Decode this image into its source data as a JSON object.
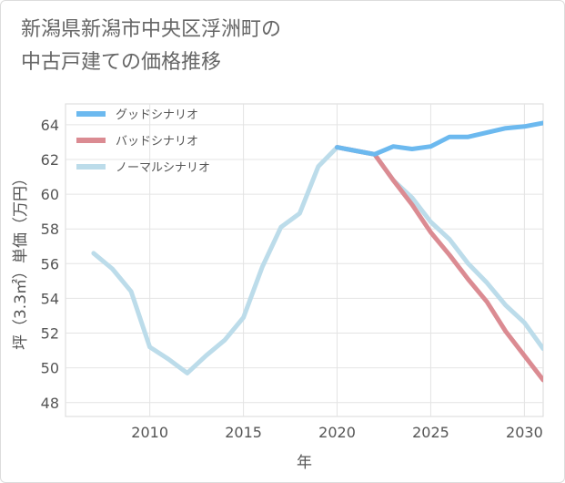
{
  "title_lines": [
    "新潟県新潟市中央区浮洲町の",
    "中古戸建ての価格推移"
  ],
  "chart_data": {
    "type": "line",
    "title": "新潟県新潟市中央区浮洲町の中古戸建ての価格推移",
    "xlabel": "年",
    "ylabel": "坪（3.3㎡）単価（万円）",
    "xlim": [
      2005.5,
      2031
    ],
    "ylim": [
      47.2,
      65.2
    ],
    "x_ticks": [
      2010,
      2015,
      2020,
      2025,
      2030
    ],
    "y_ticks": [
      48,
      50,
      52,
      54,
      56,
      58,
      60,
      62,
      64
    ],
    "legend_position": "top-left",
    "series": [
      {
        "name": "グッドシナリオ",
        "color": "#6cb9ef",
        "points": [
          [
            2020,
            62.7
          ],
          [
            2021,
            62.5
          ],
          [
            2022,
            62.3
          ],
          [
            2023,
            62.75
          ],
          [
            2024,
            62.6
          ],
          [
            2025,
            62.75
          ],
          [
            2026,
            63.3
          ],
          [
            2027,
            63.3
          ],
          [
            2028,
            63.55
          ],
          [
            2029,
            63.8
          ],
          [
            2030,
            63.9
          ],
          [
            2031,
            64.1
          ]
        ]
      },
      {
        "name": "バッドシナリオ",
        "color": "#db8b92",
        "points": [
          [
            2020,
            62.7
          ],
          [
            2021,
            62.5
          ],
          [
            2022,
            62.3
          ],
          [
            2023,
            60.8
          ],
          [
            2024,
            59.4
          ],
          [
            2025,
            57.8
          ],
          [
            2026,
            56.5
          ],
          [
            2027,
            55.1
          ],
          [
            2028,
            53.8
          ],
          [
            2029,
            52.1
          ],
          [
            2030,
            50.7
          ],
          [
            2031,
            49.3
          ]
        ]
      },
      {
        "name": "ノーマルシナリオ",
        "color": "#bcdcea",
        "points": [
          [
            2007,
            56.6
          ],
          [
            2008,
            55.7
          ],
          [
            2009,
            54.4
          ],
          [
            2010,
            51.2
          ],
          [
            2011,
            50.5
          ],
          [
            2012,
            49.7
          ],
          [
            2013,
            50.7
          ],
          [
            2014,
            51.6
          ],
          [
            2015,
            52.9
          ],
          [
            2016,
            55.8
          ],
          [
            2017,
            58.1
          ],
          [
            2018,
            58.9
          ],
          [
            2019,
            61.6
          ],
          [
            2020,
            62.7
          ],
          [
            2021,
            62.5
          ],
          [
            2022,
            62.3
          ],
          [
            2023,
            60.8
          ],
          [
            2024,
            59.8
          ],
          [
            2025,
            58.4
          ],
          [
            2026,
            57.4
          ],
          [
            2027,
            56.0
          ],
          [
            2028,
            54.9
          ],
          [
            2029,
            53.6
          ],
          [
            2030,
            52.6
          ],
          [
            2031,
            51.1
          ]
        ]
      }
    ]
  }
}
